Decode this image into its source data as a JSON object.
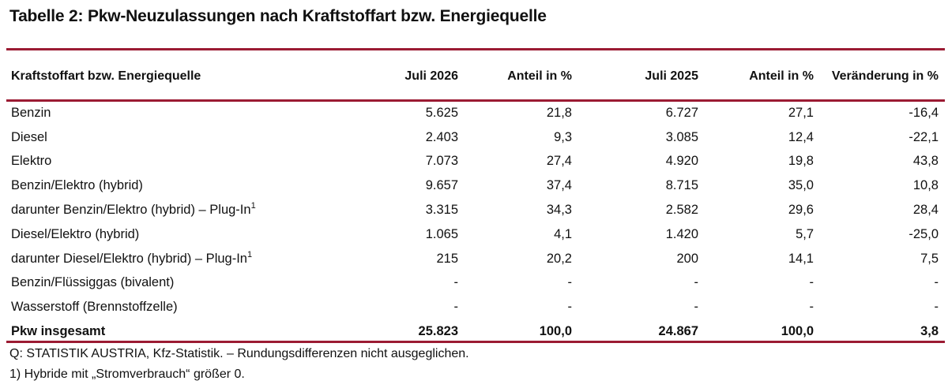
{
  "title": "Tabelle 2: Pkw-Neuzulassungen nach Kraftstoffart bzw. Energiequelle",
  "columns": [
    "Kraftstoffart bzw. Energiequelle",
    "Juli 2026",
    "Anteil in %",
    "Juli 2025",
    "Anteil in %",
    "Veränderung in %"
  ],
  "rows": [
    {
      "label": "Benzin",
      "sup": "",
      "values": [
        "5.625",
        "21,8",
        "6.727",
        "27,1",
        "-16,4"
      ]
    },
    {
      "label": "Diesel",
      "sup": "",
      "values": [
        "2.403",
        "9,3",
        "3.085",
        "12,4",
        "-22,1"
      ]
    },
    {
      "label": "Elektro",
      "sup": "",
      "values": [
        "7.073",
        "27,4",
        "4.920",
        "19,8",
        "43,8"
      ]
    },
    {
      "label": "Benzin/Elektro (hybrid)",
      "sup": "",
      "values": [
        "9.657",
        "37,4",
        "8.715",
        "35,0",
        "10,8"
      ]
    },
    {
      "label": "darunter Benzin/Elektro (hybrid) – Plug-In",
      "sup": "1",
      "values": [
        "3.315",
        "34,3",
        "2.582",
        "29,6",
        "28,4"
      ]
    },
    {
      "label": "Diesel/Elektro (hybrid)",
      "sup": "",
      "values": [
        "1.065",
        "4,1",
        "1.420",
        "5,7",
        "-25,0"
      ]
    },
    {
      "label": "darunter Diesel/Elektro (hybrid) – Plug-In",
      "sup": "1",
      "values": [
        "215",
        "20,2",
        "200",
        "14,1",
        "7,5"
      ]
    },
    {
      "label": "Benzin/Flüssiggas (bivalent)",
      "sup": "",
      "values": [
        "-",
        "-",
        "-",
        "-",
        "-"
      ]
    },
    {
      "label": "Wasserstoff (Brennstoffzelle)",
      "sup": "",
      "values": [
        "-",
        "-",
        "-",
        "-",
        "-"
      ]
    }
  ],
  "total": {
    "label": "Pkw insgesamt",
    "values": [
      "25.823",
      "100,0",
      "24.867",
      "100,0",
      "3,8"
    ]
  },
  "footnotes": {
    "source": "Q: STATISTIK AUSTRIA, Kfz-Statistik. – Rundungsdifferenzen nicht ausgeglichen.",
    "note1": "1) Hybride mit „Stromverbrauch“ größer 0."
  },
  "colors": {
    "rule": "#9b1b33"
  }
}
